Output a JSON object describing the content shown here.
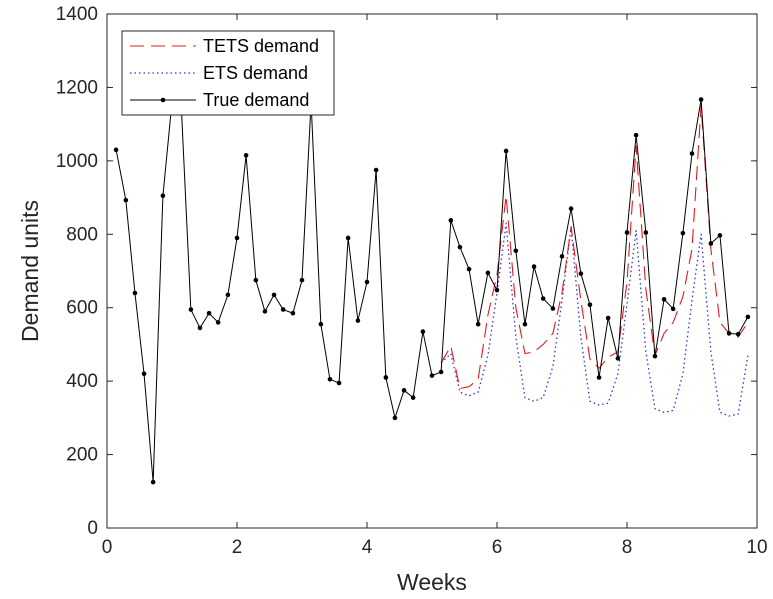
{
  "chart_data": {
    "type": "line",
    "xlabel": "Weeks",
    "ylabel": "Demand units",
    "xlim": [
      0,
      10
    ],
    "ylim": [
      0,
      1400
    ],
    "xticks": [
      0,
      2,
      4,
      6,
      8,
      10
    ],
    "yticks": [
      0,
      200,
      400,
      600,
      800,
      1000,
      1200,
      1400
    ],
    "grid": false,
    "legend_position": "top-left",
    "series": [
      {
        "name": "TETS demand",
        "style": "dashed",
        "color": "#e41a1c",
        "x": [
          5.14,
          5.29,
          5.43,
          5.57,
          5.71,
          5.86,
          6.0,
          6.14,
          6.29,
          6.43,
          6.57,
          6.71,
          6.86,
          7.0,
          7.14,
          7.29,
          7.43,
          7.57,
          7.71,
          7.86,
          8.0,
          8.14,
          8.29,
          8.43,
          8.57,
          8.71,
          8.86,
          9.0,
          9.14,
          9.29,
          9.43,
          9.57,
          9.71,
          9.86
        ],
        "y": [
          450,
          495,
          380,
          385,
          405,
          580,
          690,
          905,
          600,
          475,
          480,
          500,
          530,
          640,
          820,
          620,
          460,
          435,
          465,
          480,
          670,
          1040,
          650,
          470,
          530,
          560,
          630,
          760,
          1150,
          760,
          560,
          530,
          520,
          560
        ]
      },
      {
        "name": "ETS demand",
        "style": "dotted",
        "color": "#3333cc",
        "x": [
          5.14,
          5.29,
          5.43,
          5.57,
          5.71,
          5.86,
          6.0,
          6.14,
          6.29,
          6.43,
          6.57,
          6.71,
          6.86,
          7.0,
          7.14,
          7.29,
          7.43,
          7.57,
          7.71,
          7.86,
          8.0,
          8.14,
          8.29,
          8.43,
          8.57,
          8.71,
          8.86,
          9.0,
          9.14,
          9.29,
          9.43,
          9.57,
          9.71,
          9.86
        ],
        "y": [
          450,
          475,
          370,
          360,
          370,
          470,
          640,
          830,
          520,
          355,
          345,
          355,
          440,
          620,
          820,
          520,
          345,
          335,
          340,
          420,
          610,
          810,
          480,
          325,
          315,
          320,
          420,
          620,
          800,
          480,
          315,
          305,
          310,
          470
        ]
      },
      {
        "name": "True demand",
        "style": "solid-markers",
        "color": "#000000",
        "x": [
          0.14,
          0.29,
          0.43,
          0.57,
          0.71,
          0.86,
          1.0,
          1.14,
          1.29,
          1.43,
          1.57,
          1.71,
          1.86,
          2.0,
          2.14,
          2.29,
          2.43,
          2.57,
          2.71,
          2.86,
          3.0,
          3.14,
          3.29,
          3.43,
          3.57,
          3.71,
          3.86,
          4.0,
          4.14,
          4.29,
          4.43,
          4.57,
          4.71,
          4.86,
          5.0,
          5.14,
          5.29,
          5.43,
          5.57,
          5.71,
          5.86,
          6.0,
          6.14,
          6.29,
          6.43,
          6.57,
          6.71,
          6.86,
          7.0,
          7.14,
          7.29,
          7.43,
          7.57,
          7.71,
          7.86,
          8.0,
          8.14,
          8.29,
          8.43,
          8.57,
          8.71,
          8.86,
          9.0,
          9.14,
          9.29,
          9.43,
          9.57,
          9.71,
          9.86
        ],
        "y": [
          1030,
          893,
          640,
          420,
          125,
          905,
          1160,
          1160,
          595,
          545,
          585,
          560,
          635,
          790,
          1015,
          675,
          590,
          635,
          595,
          585,
          675,
          1160,
          555,
          405,
          395,
          790,
          565,
          670,
          975,
          410,
          300,
          375,
          355,
          535,
          415,
          425,
          838,
          765,
          705,
          555,
          695,
          648,
          1027,
          755,
          555,
          712,
          625,
          598,
          740,
          870,
          693,
          608,
          410,
          572,
          462,
          805,
          1070,
          805,
          468,
          623,
          597,
          803,
          1020,
          1167,
          775,
          797,
          530,
          528,
          575
        ]
      }
    ]
  }
}
